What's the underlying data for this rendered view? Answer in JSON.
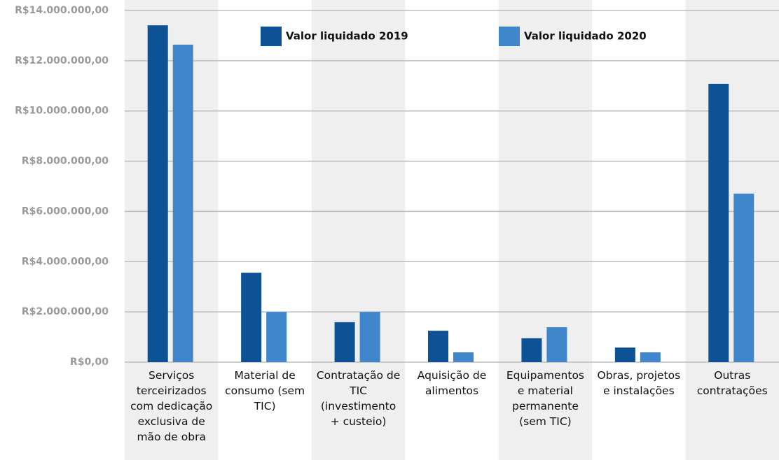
{
  "chart_data": {
    "type": "bar",
    "categories": [
      "Serviços terceirizados com dedicação exclusiva de mão de obra",
      "Material de consumo (sem TIC)",
      "Contratação de TIC (investimento + custeio)",
      "Aquisição de alimentos",
      "Equipamentos e material permanente (sem TIC)",
      "Obras, projetos e instalações",
      "Outras contratações"
    ],
    "series": [
      {
        "name": "Valor liquidado 2019",
        "color": "#0d5294",
        "values": [
          13410000,
          3560000,
          1590000,
          1250000,
          950000,
          580000,
          11080000
        ]
      },
      {
        "name": "Valor liquidado 2020",
        "color": "#3f86cb",
        "values": [
          12640000,
          2000000,
          2000000,
          390000,
          1390000,
          390000,
          6710000
        ]
      }
    ],
    "ylim": [
      0,
      14000000
    ],
    "yticks": [
      {
        "value": 0,
        "label": "R$0,00"
      },
      {
        "value": 2000000,
        "label": "R$2.000.000,00"
      },
      {
        "value": 4000000,
        "label": "R$4.000.000,00"
      },
      {
        "value": 6000000,
        "label": "R$6.000.000,00"
      },
      {
        "value": 8000000,
        "label": "R$8.000.000,00"
      },
      {
        "value": 10000000,
        "label": "R$10.000.000,00"
      },
      {
        "value": 12000000,
        "label": "R$12.000.000,00"
      },
      {
        "value": 14000000,
        "label": "R$14.000.000,00"
      }
    ],
    "grid": true,
    "legend": "top"
  }
}
